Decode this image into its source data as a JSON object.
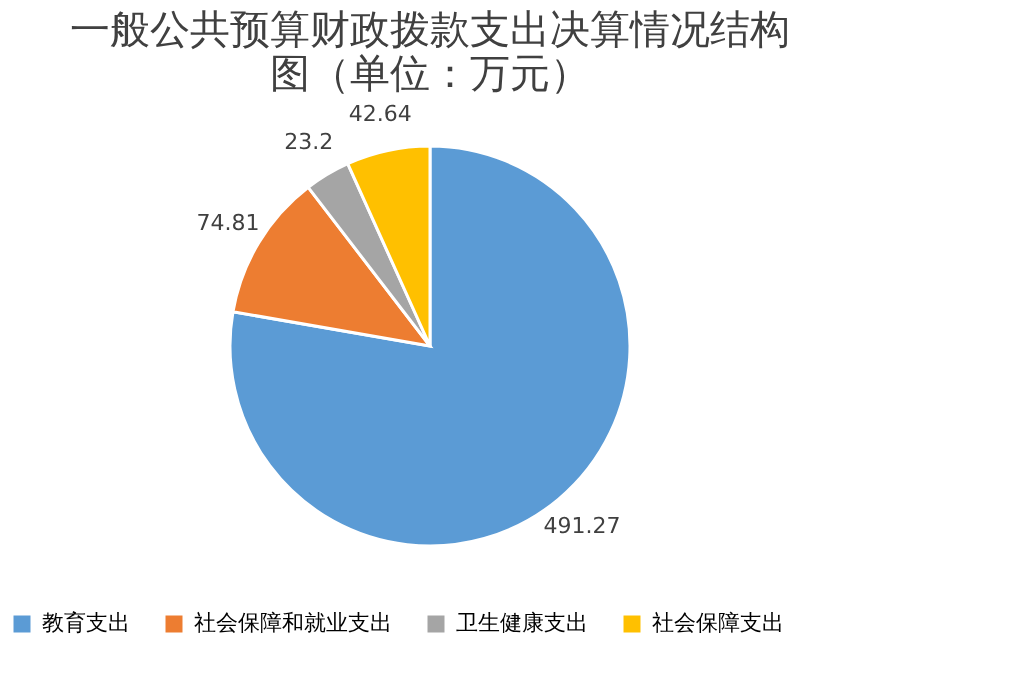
{
  "chart_data": {
    "type": "pie",
    "title": "一般公共预算财政拨款支出决算情况结构图（单位：万元）",
    "categories": [
      "教育支出",
      "社会保障和就业支出",
      "卫生健康支出",
      "社会保障支出"
    ],
    "values": [
      491.27,
      74.81,
      23.2,
      42.64
    ],
    "colors": [
      "#5b9bd5",
      "#ed7d31",
      "#a5a5a5",
      "#ffc000"
    ],
    "data_labels": true,
    "legend": "bottom"
  }
}
